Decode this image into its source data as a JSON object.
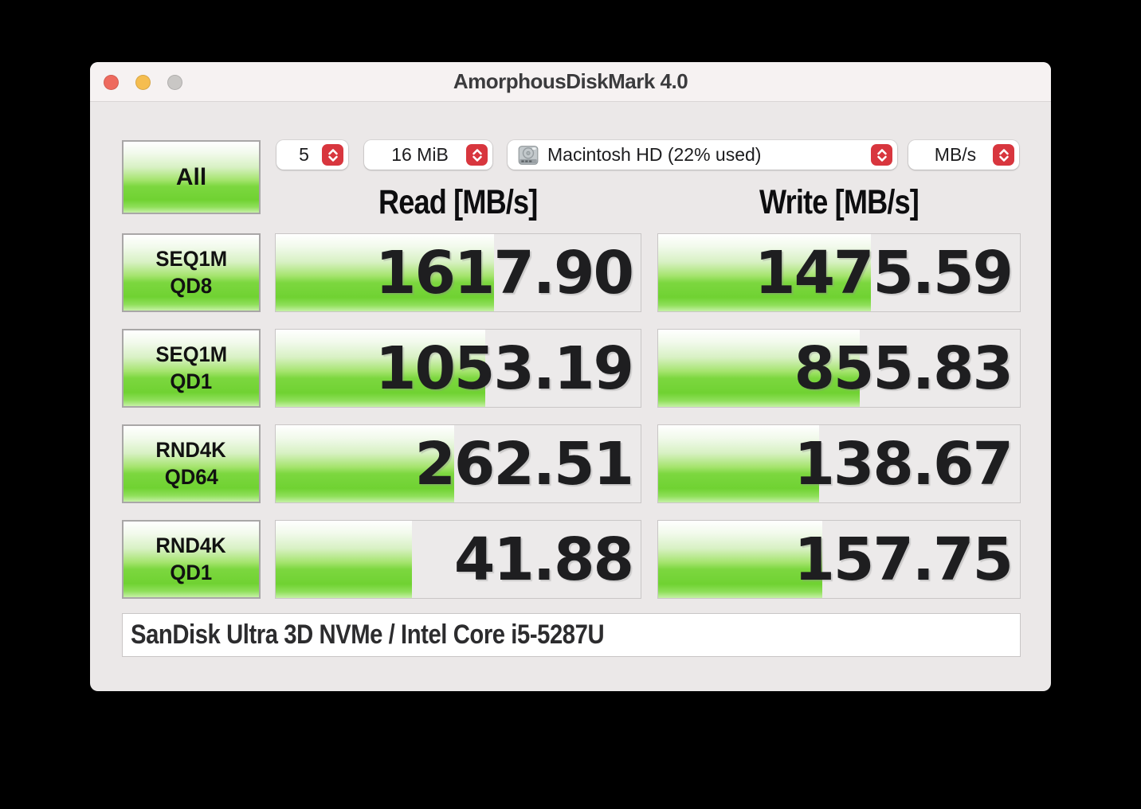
{
  "window": {
    "title": "AmorphousDiskMark 4.0"
  },
  "toolbar": {
    "all_label": "All",
    "runs_value": "5",
    "block_size_value": "16 MiB",
    "target_value": "Macintosh HD (22% used)",
    "unit_value": "MB/s"
  },
  "headers": {
    "read": "Read [MB/s]",
    "write": "Write [MB/s]"
  },
  "tests": [
    {
      "name": "SEQ1M",
      "qd": "QD8",
      "read": "1617.90",
      "write": "1475.59",
      "read_bar": 59.8,
      "write_bar": 58.9
    },
    {
      "name": "SEQ1M",
      "qd": "QD1",
      "read": "1053.19",
      "write": "855.83",
      "read_bar": 57.4,
      "write_bar": 55.8
    },
    {
      "name": "RND4K",
      "qd": "QD64",
      "read": "262.51",
      "write": "138.67",
      "read_bar": 48.9,
      "write_bar": 44.4
    },
    {
      "name": "RND4K",
      "qd": "QD1",
      "read": "41.88",
      "write": "157.75",
      "read_bar": 37.4,
      "write_bar": 45.3
    }
  ],
  "footer": {
    "device_info": "SanDisk Ultra 3D NVMe / Intel Core i5-5287U"
  },
  "colors": {
    "accent_green": "#72d437",
    "stepper_red": "#d8363e",
    "traffic_close": "#ee6a5e",
    "traffic_minimize": "#f5bd4f",
    "traffic_zoom": "#c9c7c5"
  }
}
